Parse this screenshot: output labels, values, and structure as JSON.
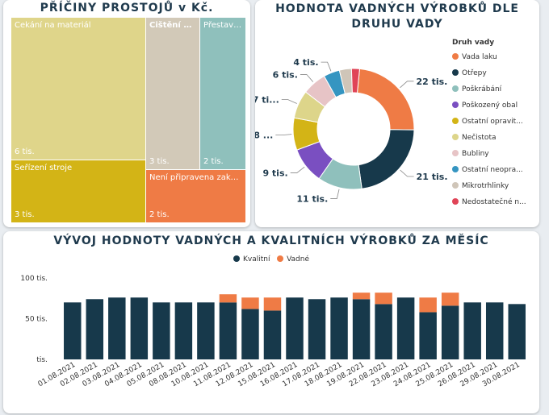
{
  "treemap": {
    "title": "PŘÍČINY PROSTOJŮ v Kč.",
    "tiles": [
      {
        "label": "Čekání na materiál",
        "value": "6 tis.",
        "color": "#dfd58a"
      },
      {
        "label": "Čištění str...",
        "value": "3 tis.",
        "color": "#d2c9b8"
      },
      {
        "label": "Přestavb...",
        "value": "2 tis.",
        "color": "#8fc0bc"
      },
      {
        "label": "Seřízení stroje",
        "value": "3 tis.",
        "color": "#d3b416"
      },
      {
        "label": "Není připravena zakázk...",
        "value": "2 tis.",
        "color": "#ef7b45"
      }
    ]
  },
  "donut": {
    "title_line1": "HODNOTA VADNÝCH VÝROBKŮ DLE",
    "title_line2": "DRUHU VADY",
    "legend_title": "Druh vady",
    "slices": [
      {
        "name": "Vada laku",
        "value": 22,
        "label": "22 tis.",
        "color": "#ef7b45"
      },
      {
        "name": "Otřepy",
        "value": 21,
        "label": "21 tis.",
        "color": "#17394b"
      },
      {
        "name": "Poškrábání",
        "value": 11,
        "label": "11 tis.",
        "color": "#8fc0bc"
      },
      {
        "name": "Poškozený obal",
        "value": 9,
        "label": "9 tis.",
        "color": "#7a4fc1"
      },
      {
        "name": "Ostatní opravit...",
        "value": 8,
        "label": "8 ...",
        "color": "#d3b416"
      },
      {
        "name": "Nečistota",
        "value": 7,
        "label": "7 ti...",
        "color": "#ddd58a"
      },
      {
        "name": "Bubliny",
        "value": 6,
        "label": "6 tis.",
        "color": "#e7c4c6"
      },
      {
        "name": "Ostatní neopra...",
        "value": 4,
        "label": "4 tis.",
        "color": "#3595c1"
      },
      {
        "name": "Mikrotrhlinky",
        "value": 3,
        "label": "",
        "color": "#cfc5b8"
      },
      {
        "name": "Nedostatečné n...",
        "value": 2,
        "label": "",
        "color": "#e04457"
      }
    ]
  },
  "bar": {
    "title": "VÝVOJ HODNOTY VADNÝCH A KVALITNÍCH VÝROBKŮ ZA MĚSÍC",
    "legend": [
      {
        "name": "Kvalitní",
        "color": "#17394b"
      },
      {
        "name": "Vadné",
        "color": "#ef7b45"
      }
    ],
    "yticks": [
      "100 tis.",
      "50 tis.",
      "tis."
    ]
  },
  "chart_data": {
    "type": "bar",
    "title": "VÝVOJ HODNOTY VADNÝCH A KVALITNÍCH VÝROBKŮ ZA MĚSÍC",
    "categories": [
      "01.08.2021",
      "02.08.2021",
      "03.08.2021",
      "04.08.2021",
      "05.08.2021",
      "08.08.2021",
      "10.08.2021",
      "11.08.2021",
      "12.08.2021",
      "15.08.2021",
      "16.08.2021",
      "17.08.2021",
      "18.08.2021",
      "19.08.2021",
      "22.08.2021",
      "23.08.2021",
      "24.08.2021",
      "25.08.2021",
      "26.08.2021",
      "29.08.2021",
      "30.08.2021"
    ],
    "series": [
      {
        "name": "Kvalitní",
        "values": [
          70,
          74,
          76,
          76,
          70,
          70,
          70,
          70,
          62,
          60,
          76,
          74,
          76,
          74,
          68,
          76,
          58,
          66,
          70,
          70,
          68
        ]
      },
      {
        "name": "Vadné",
        "values": [
          0,
          0,
          0,
          0,
          0,
          0,
          0,
          10,
          14,
          16,
          0,
          0,
          0,
          8,
          14,
          0,
          18,
          16,
          0,
          0,
          0
        ]
      }
    ],
    "stacked": true,
    "ylim": [
      0,
      100
    ],
    "legend": "top-center"
  }
}
